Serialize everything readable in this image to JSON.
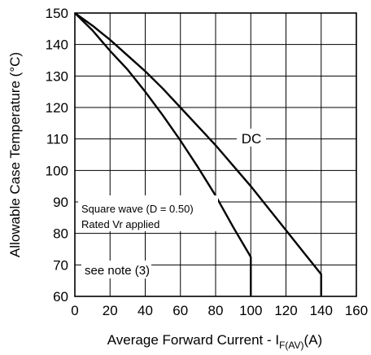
{
  "chart_data": {
    "type": "line",
    "xlabel_main": "Average Forward Current - I",
    "xlabel_sub": "F(AV)",
    "xlabel_tail": "(A)",
    "ylabel": "Allowable Case Temperature (°C)",
    "xlim": [
      0,
      160
    ],
    "ylim": [
      60,
      150
    ],
    "x_ticks": [
      "0",
      "20",
      "40",
      "60",
      "80",
      "100",
      "120",
      "140",
      "160"
    ],
    "y_ticks": [
      "60",
      "70",
      "80",
      "90",
      "100",
      "110",
      "120",
      "130",
      "140",
      "150"
    ],
    "grid": true,
    "series": [
      {
        "name": "DC",
        "x": [
          0,
          10,
          20,
          30,
          40,
          50,
          60,
          70,
          80,
          90,
          100,
          110,
          120,
          130,
          140,
          140
        ],
        "y": [
          150,
          146,
          141.5,
          136.5,
          131.5,
          126,
          120,
          114,
          108,
          101.5,
          95,
          88,
          81,
          74,
          67,
          60
        ]
      },
      {
        "name": "Square wave (D = 0.50)",
        "x": [
          0,
          10,
          20,
          30,
          40,
          50,
          60,
          70,
          80,
          90,
          100,
          100
        ],
        "y": [
          150,
          144.5,
          138,
          132,
          125,
          117.5,
          109.5,
          101,
          92,
          82,
          72.5,
          60
        ]
      }
    ],
    "annotations": {
      "dc_label": "DC",
      "square_wave": "Square wave (D = 0.50)",
      "rated": "Rated Vr  applied",
      "note": "see note (3)"
    }
  }
}
